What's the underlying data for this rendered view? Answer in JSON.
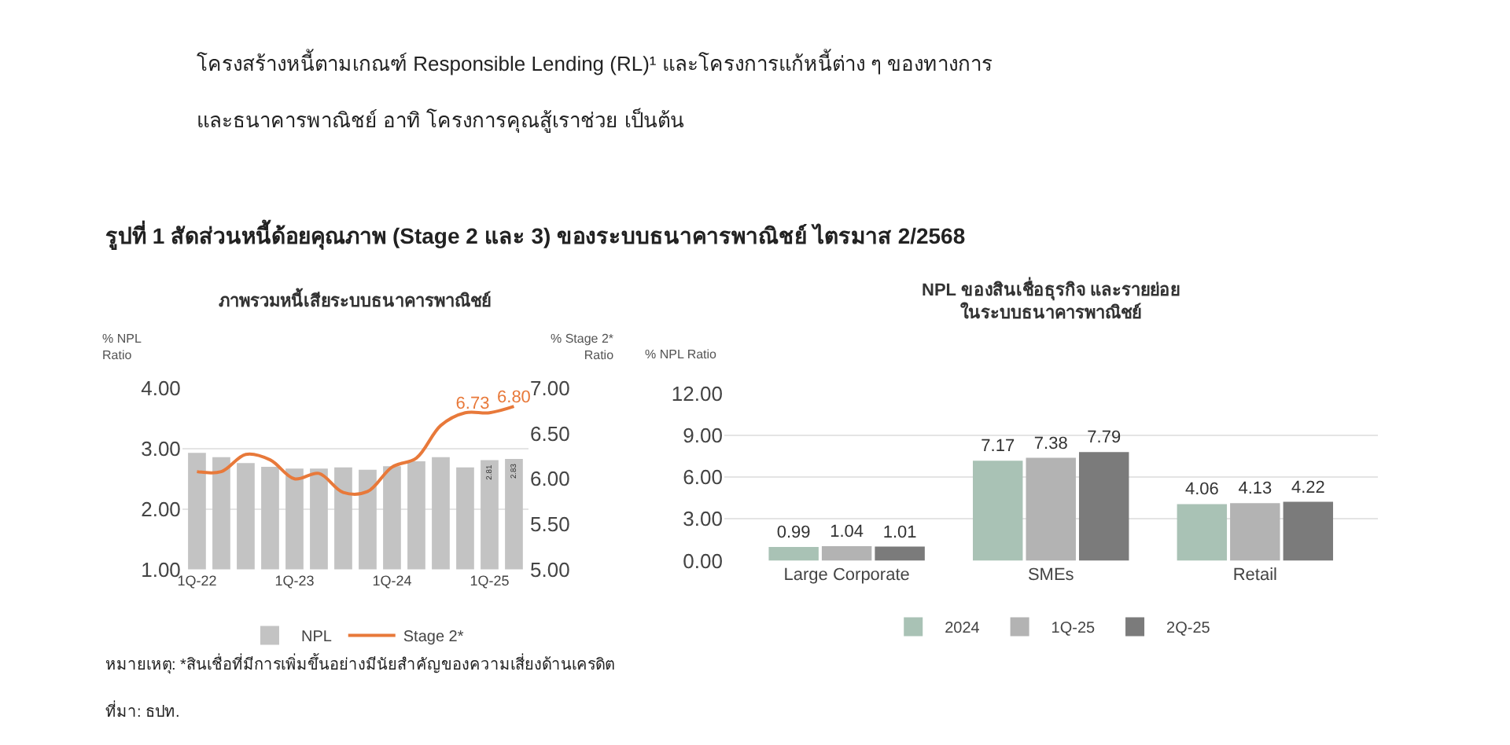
{
  "chart_data": [
    {
      "type": "bar",
      "title": "ภาพรวมหนี้เสียระบบธนาคารพาณิชย์",
      "ylabel": "% NPL\nRatio",
      "y2label": "% Stage 2*\nRatio",
      "categories": [
        "1Q-22",
        null,
        null,
        null,
        "1Q-23",
        null,
        null,
        null,
        "1Q-24",
        null,
        null,
        null,
        "1Q-25",
        null
      ],
      "series": [
        {
          "name": "NPL",
          "type": "bar",
          "color": "#c3c3c3",
          "values": [
            2.93,
            2.86,
            2.76,
            2.7,
            2.67,
            2.67,
            2.69,
            2.65,
            2.71,
            2.79,
            2.86,
            2.69,
            2.81,
            2.83
          ],
          "value_labels": [
            null,
            null,
            null,
            null,
            null,
            null,
            null,
            null,
            null,
            null,
            null,
            null,
            "2.81",
            "2.83"
          ]
        },
        {
          "name": "Stage 2*",
          "type": "line",
          "axis": "y2",
          "color": "#e8793a",
          "values": [
            6.08,
            6.08,
            6.27,
            6.21,
            6.0,
            6.06,
            5.85,
            5.86,
            6.13,
            6.23,
            6.59,
            6.73,
            6.73,
            6.8
          ],
          "value_labels": [
            null,
            null,
            null,
            null,
            null,
            null,
            null,
            null,
            null,
            null,
            null,
            null,
            "6.73",
            "6.80"
          ]
        }
      ],
      "ylim": [
        1,
        4
      ],
      "yticks": [
        {
          "value": 1,
          "label": "1.00"
        },
        {
          "value": 2,
          "label": "2.00"
        },
        {
          "value": 3,
          "label": "3.00"
        },
        {
          "value": 4,
          "label": "4.00"
        }
      ],
      "y2lim": [
        5,
        7
      ],
      "y2ticks": [
        {
          "value": 5,
          "label": "5.00"
        },
        {
          "value": 5.5,
          "label": "5.50"
        },
        {
          "value": 6,
          "label": "6.00"
        },
        {
          "value": 6.5,
          "label": "6.50"
        },
        {
          "value": 7,
          "label": "7.00"
        }
      ],
      "grid": "y",
      "legend": "bottom",
      "marker": "none",
      "line_style": "solid",
      "annotations": [
        "โครงสร้างหนี้ตามเกณฑ์ Responsible Lending (RL)¹ และโครงการแก้หนี้ต่าง ๆ ของทางการ",
        "และธนาคารพาณิชย์ อาทิ โครงการคุณสู้เราช่วย เป็นต้น",
        "รูปที่ 1 สัดส่วนหนี้ด้อยคุณภาพ (Stage 2 และ 3) ของระบบธนาคารพาณิชย์ ไตรมาส 2/2568",
        "หมายเหตุ: *สินเชื่อที่มีการเพิ่มขึ้นอย่างมีนัยสำคัญของความเสี่ยงด้านเครดิต",
        "ที่มา: ธปท."
      ]
    },
    {
      "type": "bar",
      "title": "NPL ของสินเชื่อธุรกิจ และรายย่อย\nในระบบธนาคารพาณิชย์",
      "ylabel": "% NPL Ratio",
      "categories": [
        "Large Corporate",
        "SMEs",
        "Retail"
      ],
      "series": [
        {
          "name": "2024",
          "color": "#a9c2b5",
          "values": [
            0.99,
            7.17,
            4.06
          ]
        },
        {
          "name": "1Q-25",
          "color": "#b3b3b3",
          "values": [
            1.04,
            7.38,
            4.13
          ]
        },
        {
          "name": "2Q-25",
          "color": "#7b7b7b",
          "values": [
            1.01,
            7.79,
            4.22
          ]
        }
      ],
      "ylim": [
        0,
        12
      ],
      "yticks": [
        {
          "value": 0,
          "label": "0.00"
        },
        {
          "value": 3,
          "label": "3.00"
        },
        {
          "value": 6,
          "label": "6.00"
        },
        {
          "value": 9,
          "label": "9.00"
        },
        {
          "value": 12,
          "label": "12.00"
        }
      ],
      "grid": "y",
      "legend": "bottom",
      "data_labels": true
    }
  ]
}
